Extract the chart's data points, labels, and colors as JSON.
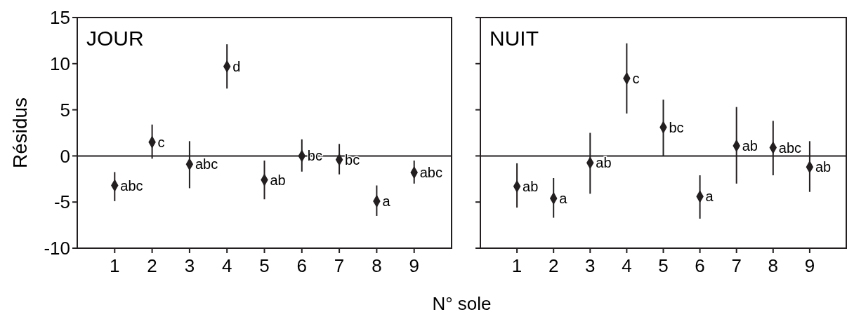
{
  "chart_data": [
    {
      "type": "scatter",
      "title": "JOUR",
      "xlabel": "N° sole",
      "ylabel": "Résidus",
      "categories": [
        "1",
        "2",
        "3",
        "4",
        "5",
        "6",
        "7",
        "8",
        "9"
      ],
      "series": [
        {
          "color": "#231f20",
          "values": [
            -3.2,
            1.5,
            -0.9,
            9.7,
            -2.6,
            0,
            -0.4,
            -4.9,
            -1.8
          ],
          "errors": [
            [
              -4.9,
              -1.75
            ],
            [
              -0.3,
              3.4
            ],
            [
              -3.5,
              1.6
            ],
            [
              7.3,
              12.1
            ],
            [
              -4.7,
              -0.5
            ],
            [
              -1.7,
              1.8
            ],
            [
              -2,
              1.3
            ],
            [
              -6.5,
              -3.2
            ],
            [
              -3,
              -0.5
            ]
          ],
          "value_labels": [
            "abc",
            "c",
            "abc",
            "d",
            "ab",
            "bc",
            "bc",
            "a",
            "abc"
          ]
        }
      ],
      "marker": "diamond",
      "ylim": [
        -10,
        15
      ],
      "yticks": [
        -10,
        -5,
        0,
        5,
        10,
        15
      ],
      "ref_lines": [
        {
          "axis": "y",
          "value": 0,
          "color": "#231f20"
        }
      ],
      "grid": false
    },
    {
      "type": "scatter",
      "title": "NUIT",
      "categories": [
        "1",
        "2",
        "3",
        "4",
        "5",
        "6",
        "7",
        "8",
        "9"
      ],
      "series": [
        {
          "color": "#231f20",
          "values": [
            -3.3,
            -4.6,
            -0.75,
            8.4,
            3.1,
            -4.4,
            1.1,
            0.9,
            -1.2
          ],
          "errors": [
            [
              -5.6,
              -0.8
            ],
            [
              -6.7,
              -2.4
            ],
            [
              -4.1,
              2.5
            ],
            [
              4.6,
              12.2
            ],
            [
              0,
              6.1
            ],
            [
              -6.8,
              -2.1
            ],
            [
              -3,
              5.3
            ],
            [
              -2.1,
              3.8
            ],
            [
              -3.9,
              1.6
            ]
          ],
          "value_labels": [
            "ab",
            "a",
            "ab",
            "c",
            "bc",
            "a",
            "ab",
            "abc",
            "ab"
          ]
        }
      ],
      "marker": "diamond",
      "ylim": [
        -10,
        15
      ],
      "yticks": [
        -10,
        -5,
        0,
        5,
        10,
        15
      ],
      "ref_lines": [
        {
          "axis": "y",
          "value": 0,
          "color": "#231f20"
        }
      ],
      "grid": false,
      "tick_labels": "x"
    }
  ]
}
